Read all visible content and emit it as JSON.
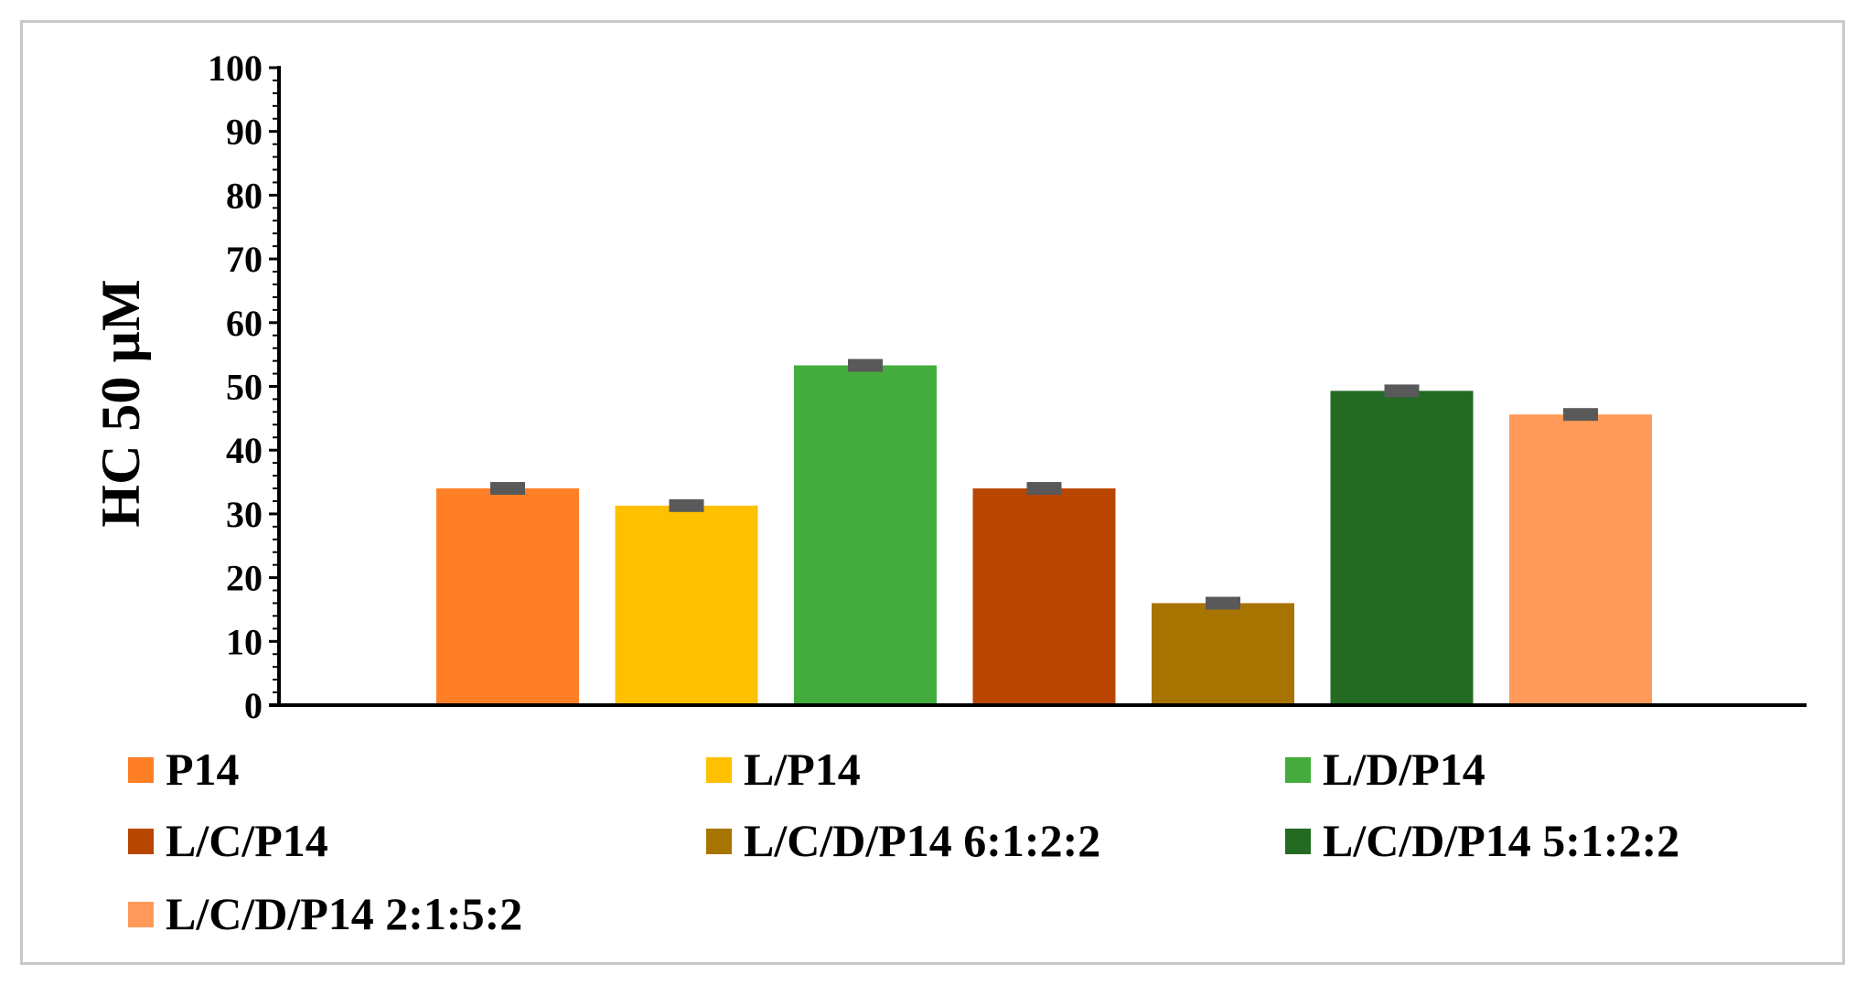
{
  "chart_data": {
    "type": "bar",
    "title": "",
    "xlabel": "",
    "ylabel": "HC 50 µM",
    "ylim": [
      0,
      100
    ],
    "yticks": [
      0,
      10,
      20,
      30,
      40,
      50,
      60,
      70,
      80,
      90,
      100
    ],
    "grid": false,
    "legend_position": "bottom",
    "series": [
      {
        "name": "P14",
        "value": 34,
        "error": 1,
        "color": "#FF7F27"
      },
      {
        "name": "L/P14",
        "value": 31.3,
        "error": 1,
        "color": "#FFC000"
      },
      {
        "name": "L/D/P14",
        "value": 53.3,
        "error": 1,
        "color": "#43AC3C"
      },
      {
        "name": "L/C/P14",
        "value": 34,
        "error": 1,
        "color": "#B84600"
      },
      {
        "name": "L/C/D/P14 6:1:2:2",
        "value": 16,
        "error": 1,
        "color": "#A87400"
      },
      {
        "name": "L/C/D/P14 5:1:2:2",
        "value": 49.3,
        "error": 1,
        "color": "#236A23"
      },
      {
        "name": "L/C/D/P14 2:1:5:2",
        "value": 45.6,
        "error": 1,
        "color": "#FF9A5A"
      }
    ],
    "error_bar_color": "#595959"
  }
}
